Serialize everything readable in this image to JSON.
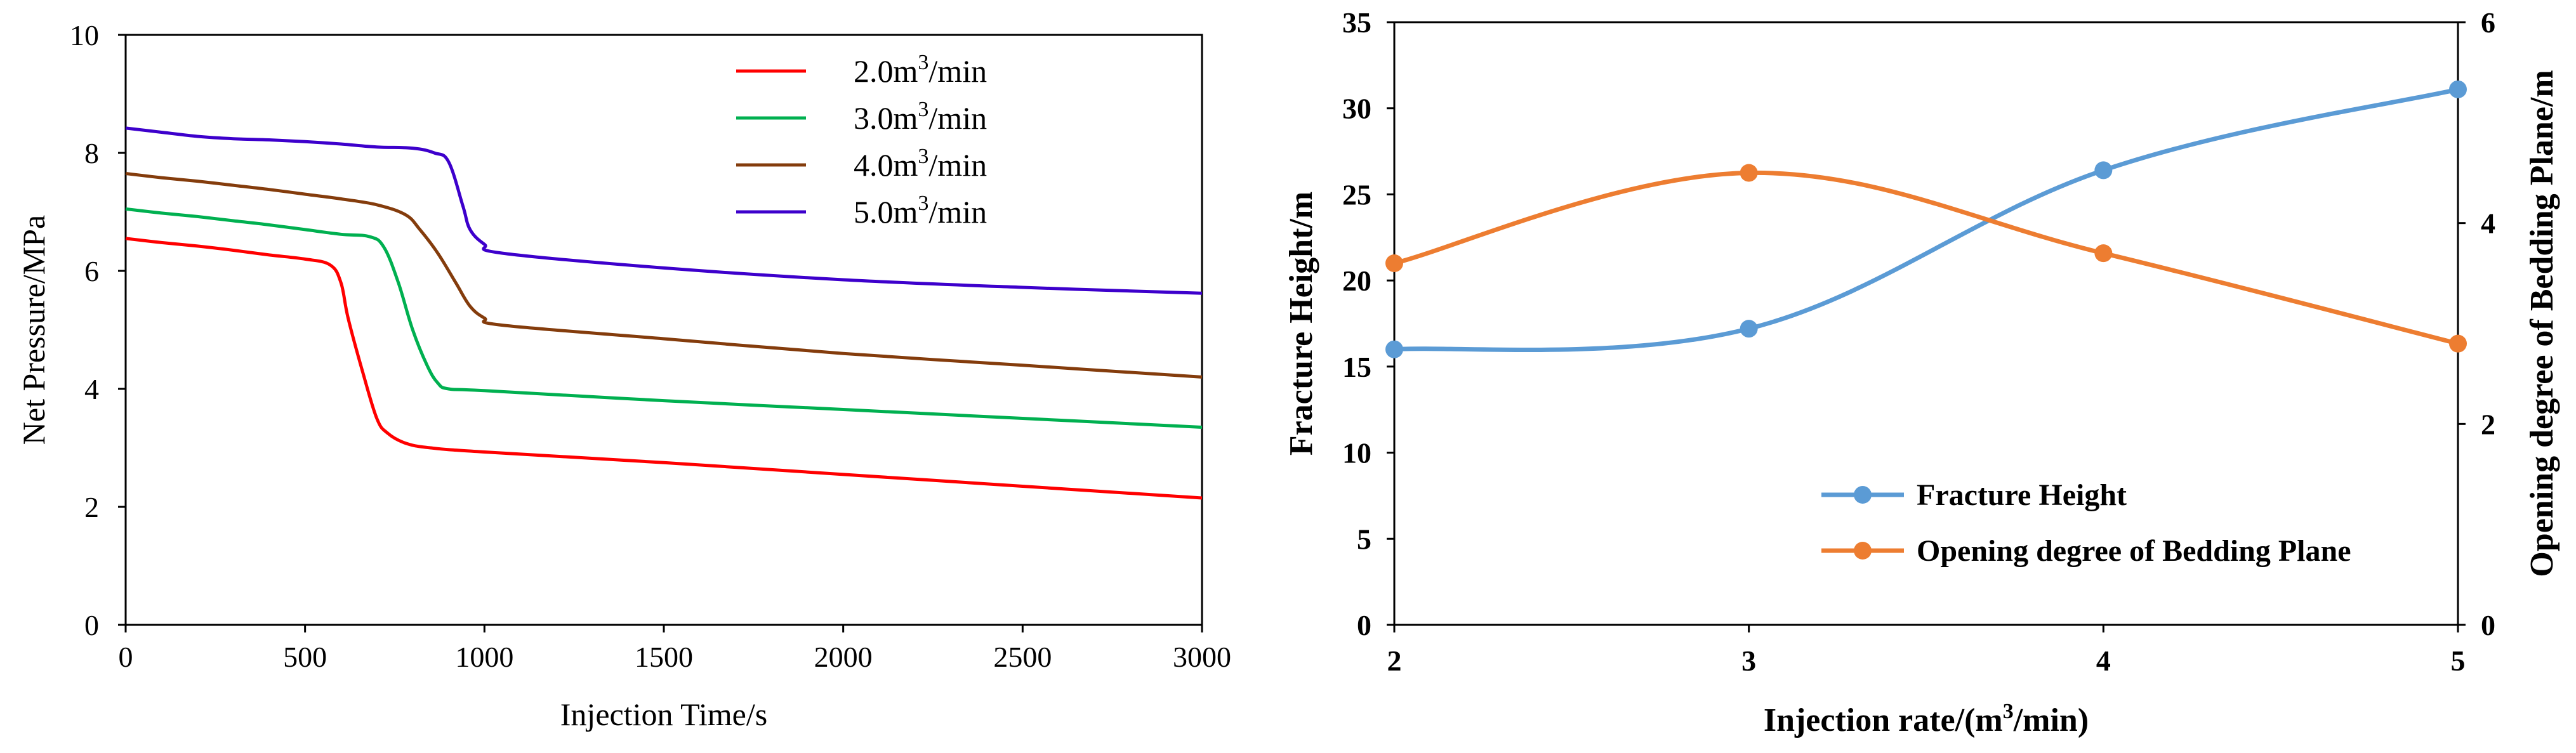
{
  "chart_data": [
    {
      "type": "line",
      "title": "",
      "xlabel": "Injection Time/s",
      "ylabel": "Net Pressure/MPa",
      "xlim": [
        0,
        3000
      ],
      "ylim": [
        0,
        10
      ],
      "x_ticks": [
        0,
        500,
        1000,
        1500,
        2000,
        2500,
        3000
      ],
      "y_ticks": [
        0,
        2,
        4,
        6,
        8,
        10
      ],
      "legend_position": "top-right",
      "series": [
        {
          "name": "2.0m³/min",
          "name_base": "2.0m",
          "name_sup": "3",
          "name_tail": "/min",
          "color": "#ff0000",
          "points": [
            [
              0,
              6.55
            ],
            [
              100,
              6.48
            ],
            [
              200,
              6.42
            ],
            [
              300,
              6.35
            ],
            [
              400,
              6.27
            ],
            [
              500,
              6.2
            ],
            [
              570,
              6.1
            ],
            [
              600,
              5.8
            ],
            [
              620,
              5.2
            ],
            [
              660,
              4.3
            ],
            [
              700,
              3.5
            ],
            [
              730,
              3.25
            ],
            [
              780,
              3.08
            ],
            [
              850,
              3.0
            ],
            [
              1000,
              2.93
            ],
            [
              1500,
              2.75
            ],
            [
              2000,
              2.55
            ],
            [
              2500,
              2.35
            ],
            [
              3000,
              2.15
            ]
          ]
        },
        {
          "name": "3.0m³/min",
          "name_base": "3.0m",
          "name_sup": "3",
          "name_tail": "/min",
          "color": "#00b050",
          "points": [
            [
              0,
              7.05
            ],
            [
              100,
              6.98
            ],
            [
              200,
              6.92
            ],
            [
              300,
              6.85
            ],
            [
              400,
              6.78
            ],
            [
              500,
              6.7
            ],
            [
              600,
              6.62
            ],
            [
              680,
              6.58
            ],
            [
              720,
              6.4
            ],
            [
              760,
              5.8
            ],
            [
              800,
              5.0
            ],
            [
              840,
              4.4
            ],
            [
              870,
              4.1
            ],
            [
              900,
              4.0
            ],
            [
              1000,
              3.97
            ],
            [
              1500,
              3.8
            ],
            [
              2000,
              3.65
            ],
            [
              2500,
              3.5
            ],
            [
              3000,
              3.35
            ]
          ]
        },
        {
          "name": "4.0m³/min",
          "name_base": "4.0m",
          "name_sup": "3",
          "name_tail": "/min",
          "color": "#843c0c",
          "points": [
            [
              0,
              7.65
            ],
            [
              100,
              7.58
            ],
            [
              200,
              7.52
            ],
            [
              300,
              7.45
            ],
            [
              400,
              7.38
            ],
            [
              500,
              7.3
            ],
            [
              600,
              7.22
            ],
            [
              700,
              7.12
            ],
            [
              780,
              6.95
            ],
            [
              820,
              6.7
            ],
            [
              870,
              6.3
            ],
            [
              920,
              5.8
            ],
            [
              960,
              5.4
            ],
            [
              1000,
              5.2
            ],
            [
              1050,
              5.08
            ],
            [
              1500,
              4.85
            ],
            [
              2000,
              4.6
            ],
            [
              2500,
              4.4
            ],
            [
              3000,
              4.2
            ]
          ]
        },
        {
          "name": "5.0m³/min",
          "name_base": "5.0m",
          "name_sup": "3",
          "name_tail": "/min",
          "color": "#3d00cc",
          "points": [
            [
              0,
              8.42
            ],
            [
              100,
              8.35
            ],
            [
              200,
              8.28
            ],
            [
              300,
              8.24
            ],
            [
              400,
              8.22
            ],
            [
              500,
              8.19
            ],
            [
              600,
              8.15
            ],
            [
              700,
              8.1
            ],
            [
              800,
              8.08
            ],
            [
              860,
              8.0
            ],
            [
              900,
              7.85
            ],
            [
              940,
              7.1
            ],
            [
              960,
              6.7
            ],
            [
              1000,
              6.45
            ],
            [
              1050,
              6.3
            ],
            [
              1500,
              6.05
            ],
            [
              2000,
              5.85
            ],
            [
              2500,
              5.72
            ],
            [
              3000,
              5.62
            ]
          ]
        }
      ]
    },
    {
      "type": "line",
      "title": "",
      "xlabel": "Injection rate/(m³/min)",
      "xlabel_base": "Injection rate/(m",
      "xlabel_sup": "3",
      "xlabel_tail": "/min)",
      "ylabel_left": "Fracture Height/m",
      "ylabel_right": "Opening degree of Bedding Plane/m",
      "x": [
        2,
        3,
        4,
        5
      ],
      "x_ticks": [
        2,
        3,
        4,
        5
      ],
      "xlim": [
        2,
        5
      ],
      "ylim_left": [
        0,
        35
      ],
      "y_ticks_left": [
        0,
        5,
        10,
        15,
        20,
        25,
        30,
        35
      ],
      "ylim_right": [
        0,
        6
      ],
      "y_ticks_right": [
        0,
        2,
        4,
        6
      ],
      "legend_position": "bottom-center",
      "series": [
        {
          "name": "Fracture Height",
          "axis": "left",
          "color": "#5b9bd5",
          "values": [
            16.0,
            17.2,
            26.4,
            31.1
          ]
        },
        {
          "name": "Opening degree of Bedding Plane",
          "axis": "right",
          "color": "#ed7d31",
          "values": [
            3.6,
            4.5,
            3.7,
            2.8
          ]
        }
      ]
    }
  ]
}
